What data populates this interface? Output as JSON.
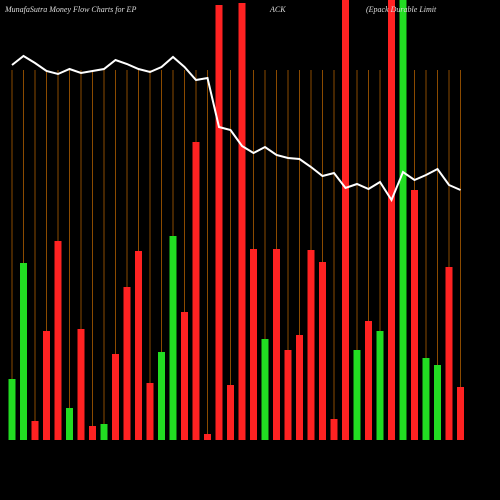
{
  "chart_data": {
    "type": "bar",
    "title_parts": [
      "MunafaSutra  Money Flow  Charts for EP",
      "ACK",
      "(Epack Durable   Limit"
    ],
    "series": [
      {
        "name": "Money Flow",
        "values": [
          61,
          177,
          19,
          109,
          199,
          32,
          111,
          14,
          16,
          86,
          153,
          189,
          57,
          88,
          204,
          128,
          298,
          6,
          435,
          55,
          437,
          191,
          101,
          191,
          90,
          105,
          190,
          178,
          21,
          440,
          90,
          119,
          109,
          440,
          440,
          250,
          82,
          75,
          173,
          53
        ],
        "colors": [
          "#22dd22",
          "#22dd22",
          "#ff2222",
          "#ff2222",
          "#ff2222",
          "#22dd22",
          "#ff2222",
          "#ff2222",
          "#22dd22",
          "#ff2222",
          "#ff2222",
          "#ff2222",
          "#ff2222",
          "#22dd22",
          "#22dd22",
          "#ff2222",
          "#ff2222",
          "#ff2222",
          "#ff2222",
          "#ff2222",
          "#ff2222",
          "#ff2222",
          "#22dd22",
          "#ff2222",
          "#ff2222",
          "#ff2222",
          "#ff2222",
          "#ff2222",
          "#ff2222",
          "#ff2222",
          "#22dd22",
          "#ff2222",
          "#22dd22",
          "#ff2222",
          "#22dd22",
          "#ff2222",
          "#22dd22",
          "#22dd22",
          "#ff2222",
          "#ff2222"
        ]
      },
      {
        "name": "Price",
        "type": "line",
        "color": "#ffffff",
        "values": [
          375,
          384,
          377,
          369,
          366,
          371,
          367,
          369,
          371,
          380,
          376,
          371,
          368,
          373,
          383,
          373,
          360,
          362,
          313,
          310,
          294,
          287,
          293,
          285,
          282,
          281,
          273,
          264,
          267,
          252,
          256,
          251,
          258,
          240,
          268,
          260,
          265,
          271,
          255,
          250
        ]
      }
    ],
    "ylim": [
      0,
      440
    ]
  }
}
